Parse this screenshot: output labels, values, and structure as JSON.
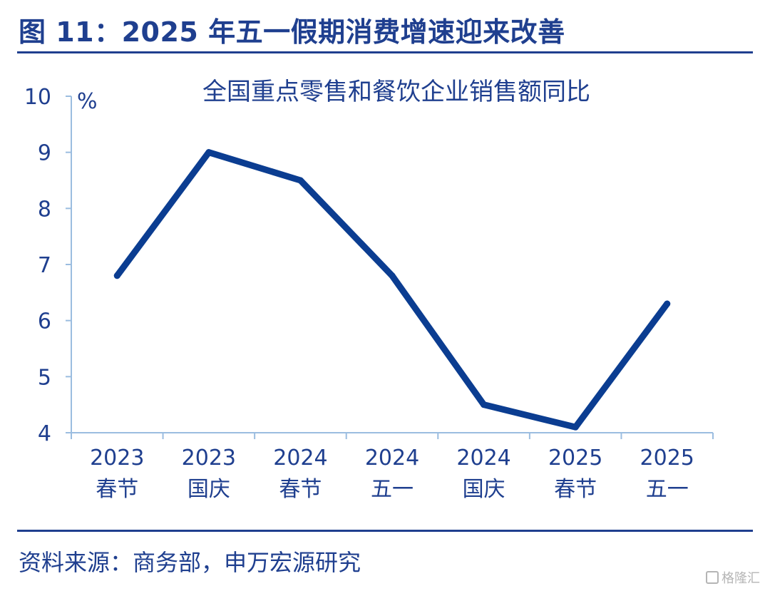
{
  "figure": {
    "title": "图 11：2025 年五一假期消费增速迎来改善",
    "source": "资料来源：商务部，申万宏源研究",
    "watermark": "格隆汇"
  },
  "colors": {
    "accent": "#1f3f8f",
    "series_line": "#0b3d91",
    "axis": "#9bbde0",
    "text": "#1f3f8f"
  },
  "chart_data": {
    "type": "line",
    "title": "全国重点零售和餐饮企业销售额同比",
    "ylabel": "%",
    "xlabel": "",
    "ylim": [
      4,
      10
    ],
    "yticks": [
      4,
      5,
      6,
      7,
      8,
      9,
      10
    ],
    "grid": false,
    "legend": "none",
    "categories": [
      [
        "2023",
        "春节"
      ],
      [
        "2023",
        "国庆"
      ],
      [
        "2024",
        "春节"
      ],
      [
        "2024",
        "五一"
      ],
      [
        "2024",
        "国庆"
      ],
      [
        "2025",
        "春节"
      ],
      [
        "2025",
        "五一"
      ]
    ],
    "series": [
      {
        "values": [
          6.8,
          9.0,
          8.5,
          6.8,
          4.5,
          4.1,
          6.3
        ]
      }
    ]
  }
}
